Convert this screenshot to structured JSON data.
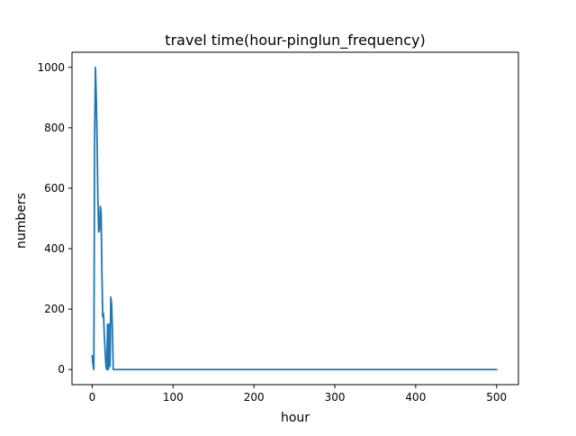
{
  "chart_data": {
    "type": "line",
    "title": "travel time(hour-pinglun_frequency)",
    "xlabel": "hour",
    "ylabel": "numbers",
    "xlim": [
      -25,
      527
    ],
    "ylim": [
      -50,
      1050
    ],
    "x_ticks": [
      0,
      100,
      200,
      300,
      400,
      500
    ],
    "y_ticks": [
      0,
      200,
      400,
      600,
      800,
      1000
    ],
    "grid": false,
    "legend": "none",
    "series": [
      {
        "color": "#1f77b4",
        "x": [
          0,
          1,
          2,
          3,
          4,
          5,
          6,
          7,
          8,
          9,
          10,
          11,
          12,
          13,
          14,
          15,
          16,
          17,
          18,
          19,
          20,
          21,
          22,
          23,
          24,
          25,
          26,
          27,
          28,
          29,
          30,
          100,
          200,
          300,
          400,
          500
        ],
        "values": [
          45,
          15,
          0,
          780,
          1000,
          900,
          760,
          560,
          455,
          460,
          540,
          520,
          320,
          175,
          185,
          110,
          60,
          10,
          0,
          150,
          0,
          150,
          10,
          240,
          215,
          130,
          0,
          0,
          0,
          0,
          0,
          0,
          0,
          0,
          0,
          0
        ]
      }
    ]
  }
}
